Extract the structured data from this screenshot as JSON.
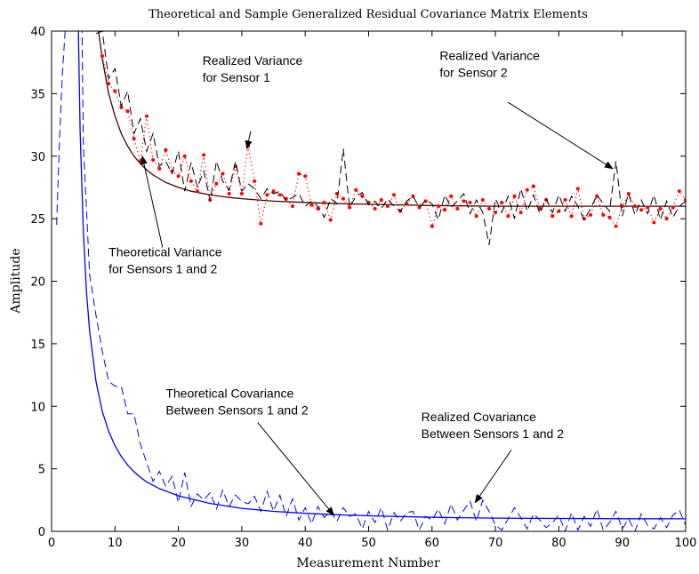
{
  "chart_data": {
    "type": "line",
    "title": "Theoretical and Sample Generalized Residual Covariance Matrix Elements",
    "xlabel": "Measurement Number",
    "ylabel": "Amplitude",
    "xlim": [
      0,
      100
    ],
    "ylim": [
      0,
      40
    ],
    "xticks": [
      0,
      10,
      20,
      30,
      40,
      50,
      60,
      70,
      80,
      90,
      100
    ],
    "yticks": [
      0,
      5,
      10,
      15,
      20,
      25,
      30,
      35,
      40
    ],
    "grid": false,
    "colors": {
      "theoretical_variance": "#4a0000",
      "realized_variance_sensor1": "#ff0000",
      "realized_variance_sensor2": "#000000",
      "covariance": "#0000ff"
    },
    "series": [
      {
        "key": "theoretical_variance",
        "style": "solid",
        "x": [
          6,
          7,
          8,
          9,
          10,
          11,
          12,
          13,
          14,
          15,
          16,
          18,
          20,
          22,
          25,
          28,
          30,
          35,
          40,
          45,
          50,
          55,
          60,
          70,
          80,
          90,
          100
        ],
        "y": [
          47,
          41.5,
          37.8,
          35.0,
          33.2,
          31.8,
          30.8,
          30.0,
          29.4,
          28.9,
          28.5,
          27.9,
          27.5,
          27.2,
          26.9,
          26.7,
          26.6,
          26.4,
          26.3,
          26.2,
          26.15,
          26.1,
          26.05,
          26.0,
          26.0,
          26.0,
          26.0
        ]
      },
      {
        "key": "realized_variance_sensor1",
        "style": "dotted-markers",
        "x": [
          8,
          9,
          10,
          11,
          12,
          13,
          14,
          15,
          16,
          17,
          18,
          19,
          20,
          21,
          22,
          23,
          24,
          25,
          26,
          27,
          28,
          29,
          30,
          31,
          32,
          33,
          34,
          35,
          36,
          37,
          38,
          39,
          40,
          41,
          42,
          43,
          44,
          45,
          46,
          47,
          48,
          49,
          50,
          51,
          52,
          53,
          54,
          55,
          56,
          57,
          58,
          59,
          60,
          61,
          62,
          63,
          64,
          65,
          66,
          67,
          68,
          69,
          70,
          71,
          72,
          73,
          74,
          75,
          76,
          77,
          78,
          79,
          80,
          81,
          82,
          83,
          84,
          85,
          86,
          87,
          88,
          89,
          90,
          91,
          92,
          93,
          94,
          95,
          96,
          97,
          98,
          99,
          100
        ],
        "y": [
          38.0,
          35.8,
          35.2,
          33.9,
          33.6,
          31.4,
          29.6,
          33.2,
          29.7,
          29.0,
          30.5,
          28.8,
          28.4,
          30.0,
          28.0,
          27.2,
          30.1,
          26.5,
          27.8,
          28.6,
          27.0,
          29.2,
          27.0,
          30.8,
          28.0,
          24.6,
          26.9,
          27.2,
          26.9,
          26.6,
          26.0,
          28.6,
          28.4,
          26.1,
          25.8,
          26.3,
          24.9,
          27.0,
          26.6,
          25.9,
          27.3,
          26.8,
          26.3,
          25.8,
          26.5,
          26.0,
          26.9,
          25.6,
          26.2,
          26.8,
          25.9,
          26.4,
          24.4,
          26.0,
          25.7,
          26.8,
          25.8,
          26.4,
          26.3,
          25.2,
          26.5,
          25.8,
          25.5,
          26.3,
          25.2,
          26.8,
          25.5,
          27.3,
          27.6,
          25.8,
          26.5,
          25.2,
          25.6,
          26.5,
          25.2,
          27.4,
          25.0,
          25.3,
          26.8,
          25.3,
          25.1,
          24.4,
          26.0,
          27.0,
          26.0,
          25.7,
          25.9,
          24.7,
          25.8,
          25.0,
          25.9,
          27.2,
          26.5
        ]
      },
      {
        "key": "realized_variance_sensor2",
        "style": "dashed",
        "x": [
          7,
          8,
          9,
          10,
          11,
          12,
          13,
          14,
          15,
          16,
          17,
          18,
          19,
          20,
          21,
          22,
          23,
          24,
          25,
          26,
          27,
          28,
          29,
          30,
          31,
          32,
          33,
          34,
          35,
          36,
          37,
          38,
          39,
          40,
          41,
          42,
          43,
          44,
          45,
          46,
          47,
          48,
          49,
          50,
          51,
          52,
          53,
          54,
          55,
          56,
          57,
          58,
          59,
          60,
          61,
          62,
          63,
          64,
          65,
          66,
          67,
          68,
          69,
          70,
          71,
          72,
          73,
          74,
          75,
          76,
          77,
          78,
          79,
          80,
          81,
          82,
          83,
          84,
          85,
          86,
          87,
          88,
          89,
          90,
          91,
          92,
          93,
          94,
          95,
          96,
          97,
          98,
          99,
          100
        ],
        "y": [
          39.8,
          40.0,
          36.2,
          37.0,
          34.0,
          35.2,
          31.8,
          33.0,
          30.4,
          31.8,
          29.2,
          29.6,
          28.6,
          30.4,
          27.2,
          29.5,
          27.5,
          28.8,
          26.4,
          29.6,
          28.0,
          27.3,
          29.6,
          27.2,
          27.8,
          27.4,
          26.6,
          27.4,
          27.0,
          27.2,
          26.4,
          26.7,
          27.0,
          26.0,
          26.4,
          26.0,
          25.1,
          26.6,
          26.2,
          30.6,
          25.9,
          26.8,
          27.1,
          26.1,
          26.4,
          25.8,
          26.6,
          26.0,
          25.6,
          26.4,
          26.8,
          25.9,
          26.5,
          26.2,
          24.9,
          26.9,
          25.9,
          26.4,
          27.0,
          25.4,
          26.5,
          25.5,
          22.9,
          26.6,
          25.5,
          26.8,
          25.0,
          27.4,
          25.6,
          26.9,
          25.4,
          26.6,
          25.5,
          26.9,
          25.6,
          26.8,
          26.0,
          24.9,
          25.8,
          26.9,
          26.2,
          25.6,
          29.6,
          25.2,
          27.0,
          25.3,
          26.5,
          25.4,
          26.9,
          24.9,
          26.4,
          25.1,
          26.0,
          26.4
        ]
      },
      {
        "key": "theoretical_covariance",
        "style": "solid",
        "x": [
          4.2,
          4.5,
          5,
          5.5,
          6,
          7,
          8,
          9,
          10,
          11,
          12,
          13,
          14,
          15,
          17,
          20,
          25,
          30,
          35,
          40,
          45,
          50,
          60,
          70,
          80,
          90,
          100
        ],
        "y": [
          41,
          32,
          24.0,
          19.2,
          16.0,
          12.0,
          9.6,
          8.0,
          6.85,
          5.98,
          5.3,
          4.77,
          4.33,
          3.96,
          3.42,
          2.84,
          2.23,
          1.84,
          1.6,
          1.44,
          1.33,
          1.24,
          1.12,
          1.06,
          1.03,
          1.01,
          1.0
        ]
      },
      {
        "key": "realized_covariance_left",
        "style": "dashed",
        "x": [
          0.8,
          1.0,
          1.3,
          1.7,
          2.2
        ],
        "y": [
          24.5,
          27.5,
          32.0,
          36.5,
          40.5
        ]
      },
      {
        "key": "realized_covariance",
        "style": "dashed",
        "x": [
          4.8,
          5,
          6,
          7,
          8,
          9,
          10,
          11,
          12,
          13,
          14,
          15,
          16,
          17,
          18,
          19,
          20,
          21,
          22,
          23,
          24,
          25,
          26,
          27,
          28,
          29,
          30,
          31,
          32,
          33,
          34,
          35,
          36,
          37,
          38,
          39,
          40,
          41,
          42,
          43,
          44,
          45,
          46,
          47,
          48,
          49,
          50,
          51,
          52,
          53,
          54,
          55,
          56,
          57,
          58,
          59,
          60,
          61,
          62,
          63,
          64,
          65,
          66,
          67,
          68,
          69,
          70,
          71,
          72,
          73,
          74,
          75,
          76,
          77,
          78,
          79,
          80,
          81,
          82,
          83,
          84,
          85,
          86,
          87,
          88,
          89,
          90,
          91,
          92,
          93,
          94,
          95,
          96,
          97,
          98,
          99,
          100
        ],
        "y": [
          40.5,
          31.0,
          20.5,
          17.3,
          14.4,
          12.0,
          11.6,
          11.6,
          9.4,
          9.4,
          7.0,
          5.5,
          4.0,
          4.8,
          3.6,
          4.4,
          2.3,
          4.7,
          2.0,
          3.0,
          2.5,
          3.1,
          1.8,
          3.3,
          2.0,
          2.9,
          2.4,
          2.2,
          2.8,
          1.6,
          3.2,
          1.6,
          2.9,
          1.2,
          2.6,
          0.9,
          1.9,
          0.6,
          2.0,
          1.1,
          1.6,
          0.8,
          1.9,
          1.2,
          1.4,
          0.2,
          1.6,
          0.7,
          1.9,
          0.1,
          1.5,
          0.8,
          1.5,
          1.6,
          0.1,
          1.2,
          0.9,
          1.8,
          0.6,
          2.2,
          0.9,
          1.7,
          2.4,
          0.8,
          2.5,
          1.6,
          0.5,
          0.1,
          1.0,
          1.9,
          1.1,
          0.2,
          1.4,
          0.9,
          0.3,
          0.7,
          1.3,
          0.0,
          1.5,
          0.1,
          1.2,
          0.4,
          1.8,
          0.1,
          0.7,
          1.6,
          0.2,
          1.0,
          0.0,
          1.4,
          0.5,
          0.2,
          1.1,
          0.3,
          1.3,
          1.7,
          0.5
        ]
      }
    ],
    "annotations": [
      {
        "lines": [
          "Realized Variance",
          "for Sensor 1"
        ],
        "text_at": [
          23.8,
          37.3
        ],
        "arrow_from": [
          31.4,
          32.0
        ],
        "arrow_to": [
          30.8,
          30.6
        ]
      },
      {
        "lines": [
          "Realized Variance",
          "for Sensor 2"
        ],
        "text_at": [
          61.2,
          37.7
        ],
        "arrow_from": [
          72.0,
          34.3
        ],
        "arrow_to": [
          88.5,
          29.0
        ]
      },
      {
        "lines": [
          "Theoretical Variance",
          "for Sensors 1 and 2"
        ],
        "text_at": [
          9.0,
          22.0
        ],
        "arrow_from": [
          17.5,
          22.7
        ],
        "arrow_to": [
          14.3,
          30.0
        ]
      },
      {
        "lines": [
          "Theoretical Covariance",
          "Between Sensors 1 and 2"
        ],
        "text_at": [
          18.0,
          10.7
        ],
        "arrow_from": [
          32.5,
          8.7
        ],
        "arrow_to": [
          44.5,
          1.3
        ]
      },
      {
        "lines": [
          "Realized Covariance",
          "Between Sensors 1 and 2"
        ],
        "text_at": [
          58.3,
          8.8
        ],
        "arrow_from": [
          72.5,
          6.5
        ],
        "arrow_to": [
          66.8,
          2.3
        ]
      }
    ]
  }
}
